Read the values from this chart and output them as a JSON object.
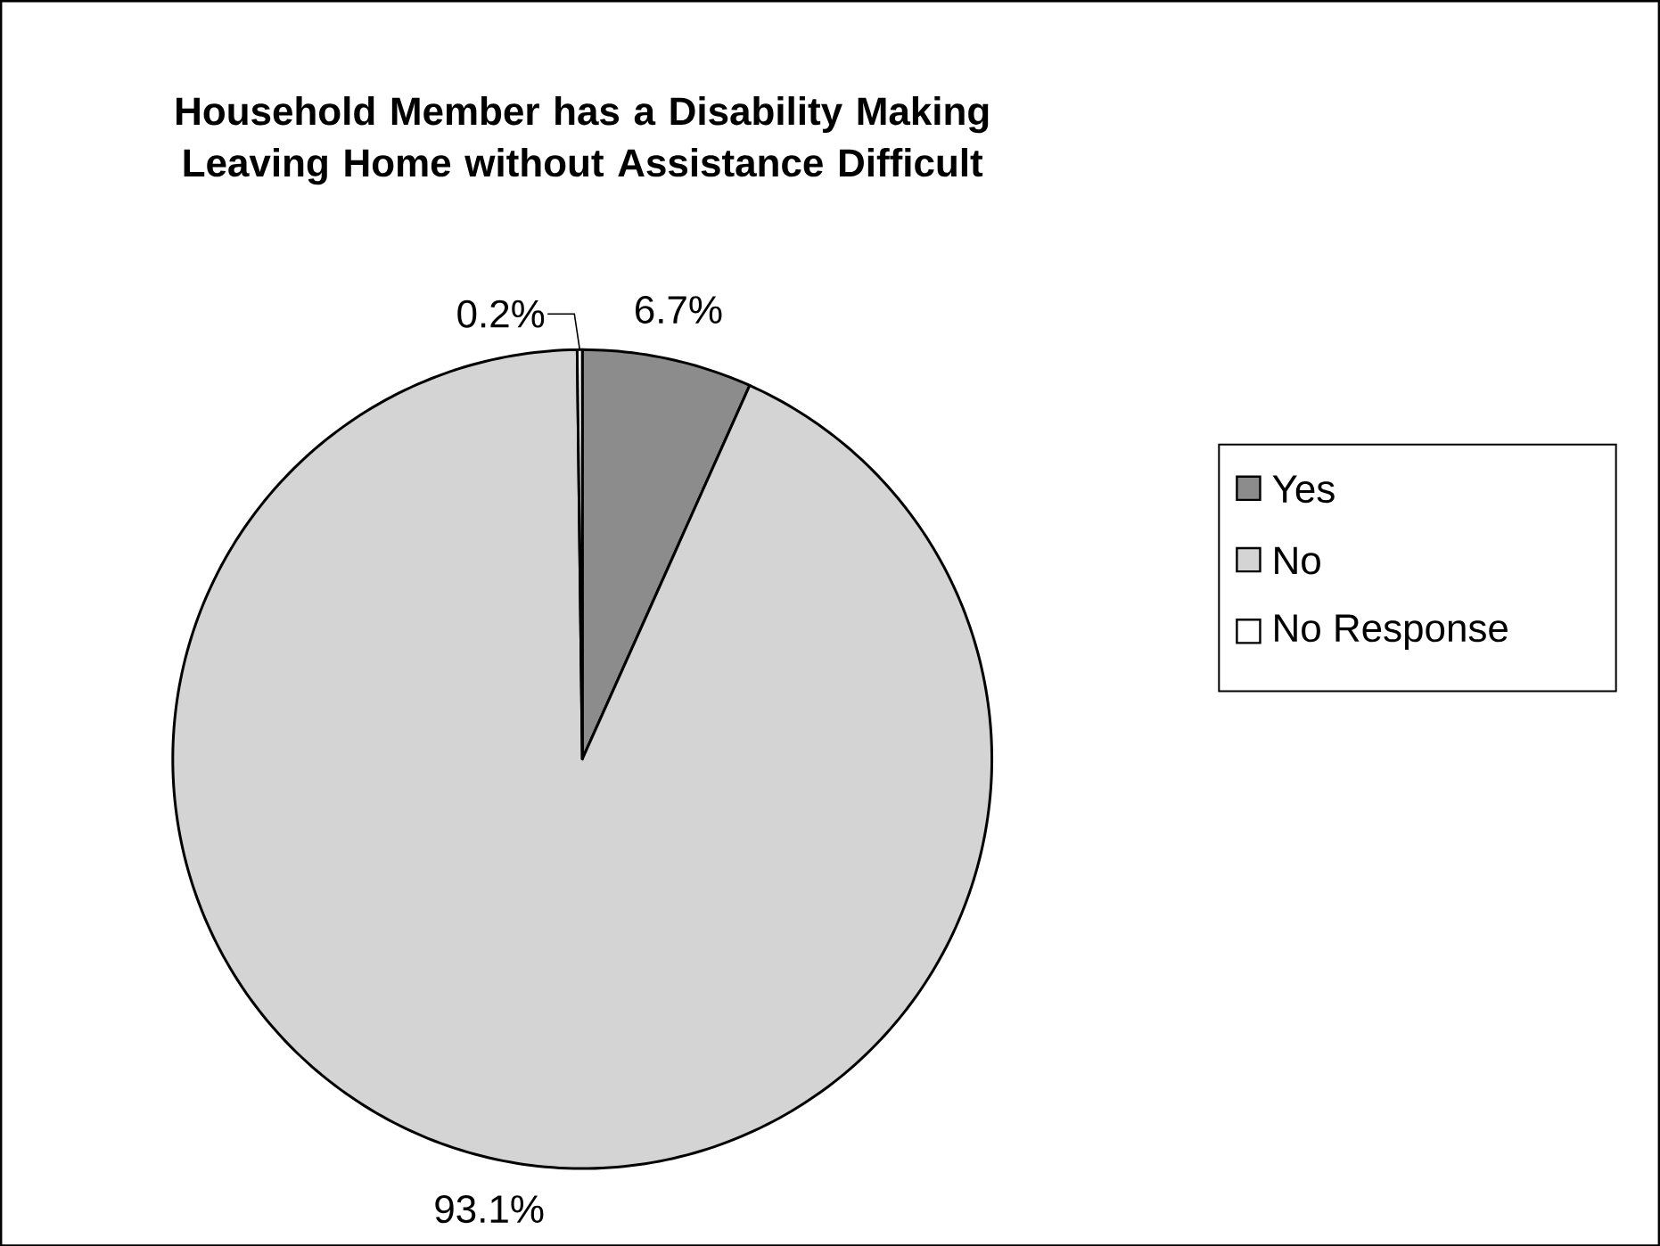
{
  "chart_data": {
    "type": "pie",
    "title": "Household Member has a Disability Making Leaving Home without Assistance Difficult",
    "categories": [
      "Yes",
      "No",
      "No Response"
    ],
    "values": [
      6.7,
      93.1,
      0.2
    ],
    "colors": [
      "#8c8c8c",
      "#d4d4d4",
      "#ffffff"
    ],
    "value_labels": [
      "6.7%",
      "93.1%",
      "0.2%"
    ],
    "legend": "right"
  }
}
